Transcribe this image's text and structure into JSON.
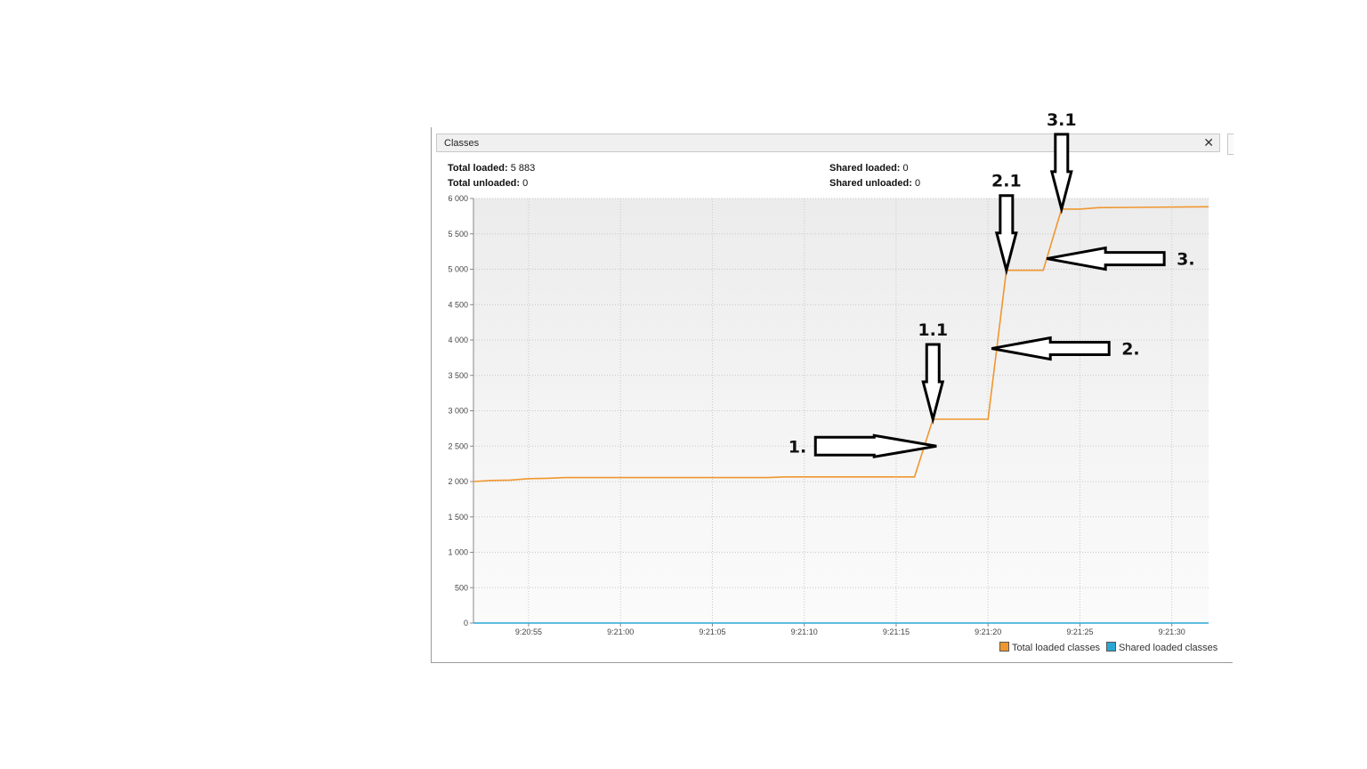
{
  "panel": {
    "tab_title": "Classes",
    "close_glyph": "✕",
    "stats": {
      "total_loaded_label": "Total loaded:",
      "total_loaded_value": "5 883",
      "total_unloaded_label": "Total unloaded:",
      "total_unloaded_value": "0",
      "shared_loaded_label": "Shared loaded:",
      "shared_loaded_value": "0",
      "shared_unloaded_label": "Shared unloaded:",
      "shared_unloaded_value": "0"
    }
  },
  "chart_data": {
    "type": "line",
    "title": "",
    "xlabel": "",
    "ylabel": "",
    "ylim": [
      0,
      6000
    ],
    "xlim": [
      "9:20:52",
      "9:21:32"
    ],
    "grid": true,
    "y_ticks": [
      "0",
      "500",
      "1 000",
      "1 500",
      "2 000",
      "2 500",
      "3 000",
      "3 500",
      "4 000",
      "4 500",
      "5 000",
      "5 500",
      "6 000"
    ],
    "x_ticks": [
      "9:20:55",
      "9:21:00",
      "9:21:05",
      "9:21:10",
      "9:21:15",
      "9:21:20",
      "9:21:25",
      "9:21:30"
    ],
    "legend_position": "bottom-right",
    "series": [
      {
        "name": "Total loaded classes",
        "color": "#f0962e",
        "points": [
          [
            "9:20:52",
            2000
          ],
          [
            "9:20:53",
            2015
          ],
          [
            "9:20:54",
            2020
          ],
          [
            "9:20:55",
            2040
          ],
          [
            "9:20:56",
            2045
          ],
          [
            "9:20:57",
            2055
          ],
          [
            "9:21:00",
            2055
          ],
          [
            "9:21:05",
            2055
          ],
          [
            "9:21:08",
            2055
          ],
          [
            "9:21:09",
            2065
          ],
          [
            "9:21:15",
            2065
          ],
          [
            "9:21:16",
            2065
          ],
          [
            "9:21:17",
            2880
          ],
          [
            "9:21:18",
            2880
          ],
          [
            "9:21:20",
            2880
          ],
          [
            "9:21:21",
            4985
          ],
          [
            "9:21:23",
            4985
          ],
          [
            "9:21:24",
            5850
          ],
          [
            "9:21:25",
            5850
          ],
          [
            "9:21:26",
            5870
          ],
          [
            "9:21:32",
            5883
          ]
        ]
      },
      {
        "name": "Shared loaded classes",
        "color": "#2aa7d3",
        "points": [
          [
            "9:20:52",
            0
          ],
          [
            "9:21:32",
            0
          ]
        ]
      }
    ]
  },
  "annotations": [
    {
      "label": "1.",
      "direction": "right",
      "points_at": [
        "9:21:17",
        2500
      ]
    },
    {
      "label": "1.1",
      "direction": "down",
      "points_at": [
        "9:21:17",
        2880
      ]
    },
    {
      "label": "2.",
      "direction": "left",
      "points_at": [
        "9:21:20",
        3880
      ]
    },
    {
      "label": "2.1",
      "direction": "down",
      "points_at": [
        "9:21:21",
        4985
      ]
    },
    {
      "label": "3.",
      "direction": "left",
      "points_at": [
        "9:21:23",
        5150
      ]
    },
    {
      "label": "3.1",
      "direction": "down",
      "points_at": [
        "9:21:24",
        5850
      ]
    }
  ]
}
